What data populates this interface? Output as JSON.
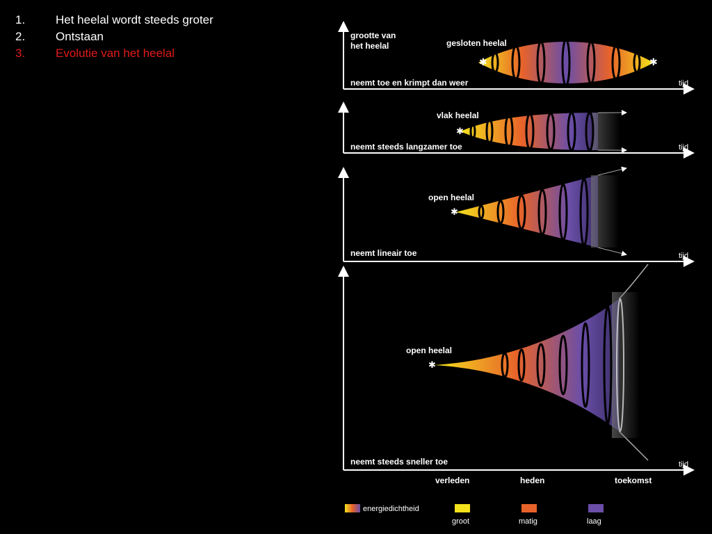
{
  "toc": {
    "items": [
      {
        "num": "1.",
        "text": "Het heelal wordt steeds groter",
        "active": false
      },
      {
        "num": "2.",
        "text": "Ontstaan",
        "active": false
      },
      {
        "num": "3.",
        "text": "Evolutie van het heelal",
        "active": true
      }
    ]
  },
  "diagram": {
    "y_axis_label": "grootte van het heelal",
    "y_axis_label_line1": "grootte van",
    "y_axis_label_line2": "het heelal",
    "time_label": "tijd",
    "panels": [
      {
        "name": "gesloten heelal",
        "behavior": "neemt toe en krimpt dan weer",
        "shape": "closed"
      },
      {
        "name": "vlak heelal",
        "behavior": "neemt steeds langzamer toe",
        "shape": "flat"
      },
      {
        "name": "open heelal",
        "behavior": "neemt lineair toe",
        "shape": "linear"
      },
      {
        "name": "open heelal",
        "behavior": "neemt steeds sneller toe",
        "shape": "accelerating"
      }
    ],
    "time_markers": [
      "verleden",
      "heden",
      "toekomst"
    ],
    "legend": {
      "title": "energiedichtheid",
      "items": [
        {
          "label": "groot",
          "color": "#f4e21c"
        },
        {
          "label": "matig",
          "color": "#e8632a"
        },
        {
          "label": "laag",
          "color": "#6a4ea8"
        }
      ]
    }
  }
}
